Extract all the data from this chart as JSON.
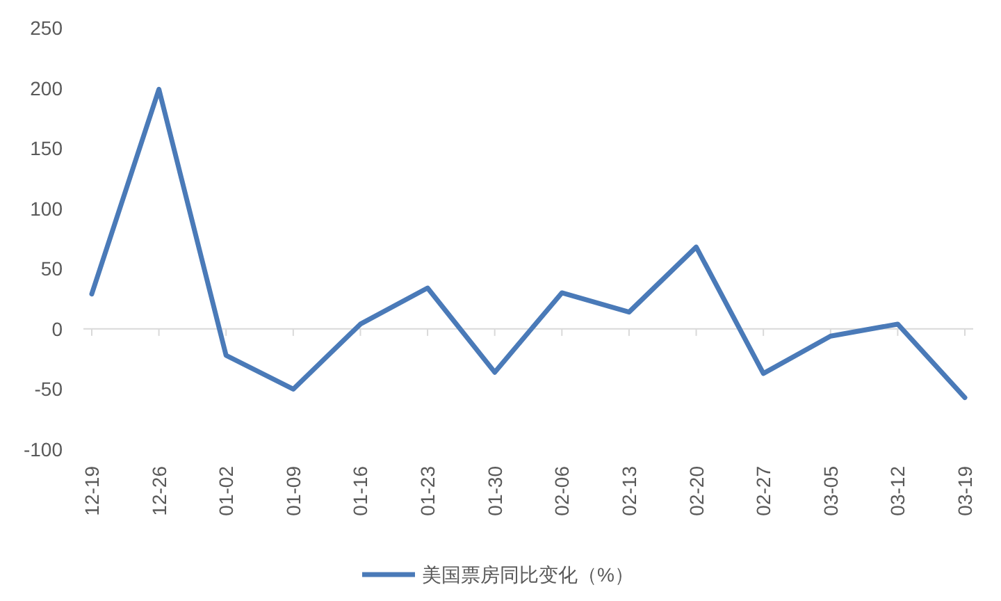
{
  "chart_data": {
    "type": "line",
    "categories": [
      "12-19",
      "12-26",
      "01-02",
      "01-09",
      "01-16",
      "01-23",
      "01-30",
      "02-06",
      "02-13",
      "02-20",
      "02-27",
      "03-05",
      "03-12",
      "03-19"
    ],
    "series": [
      {
        "name": "美国票房同比变化（%）",
        "color": "#4a7ab8",
        "values": [
          29,
          199,
          -22,
          -50,
          4,
          34,
          -36,
          30,
          14,
          68,
          -37,
          -6,
          4,
          -57
        ]
      }
    ],
    "ylim": [
      -100,
      250
    ],
    "yticks": [
      -100,
      -50,
      0,
      50,
      100,
      150,
      200,
      250
    ],
    "grid": false,
    "ref_lines": [
      {
        "axis": "y",
        "value": 0,
        "color": "#d9d9d9"
      }
    ],
    "legend": "bottom",
    "line_style": "solid"
  }
}
